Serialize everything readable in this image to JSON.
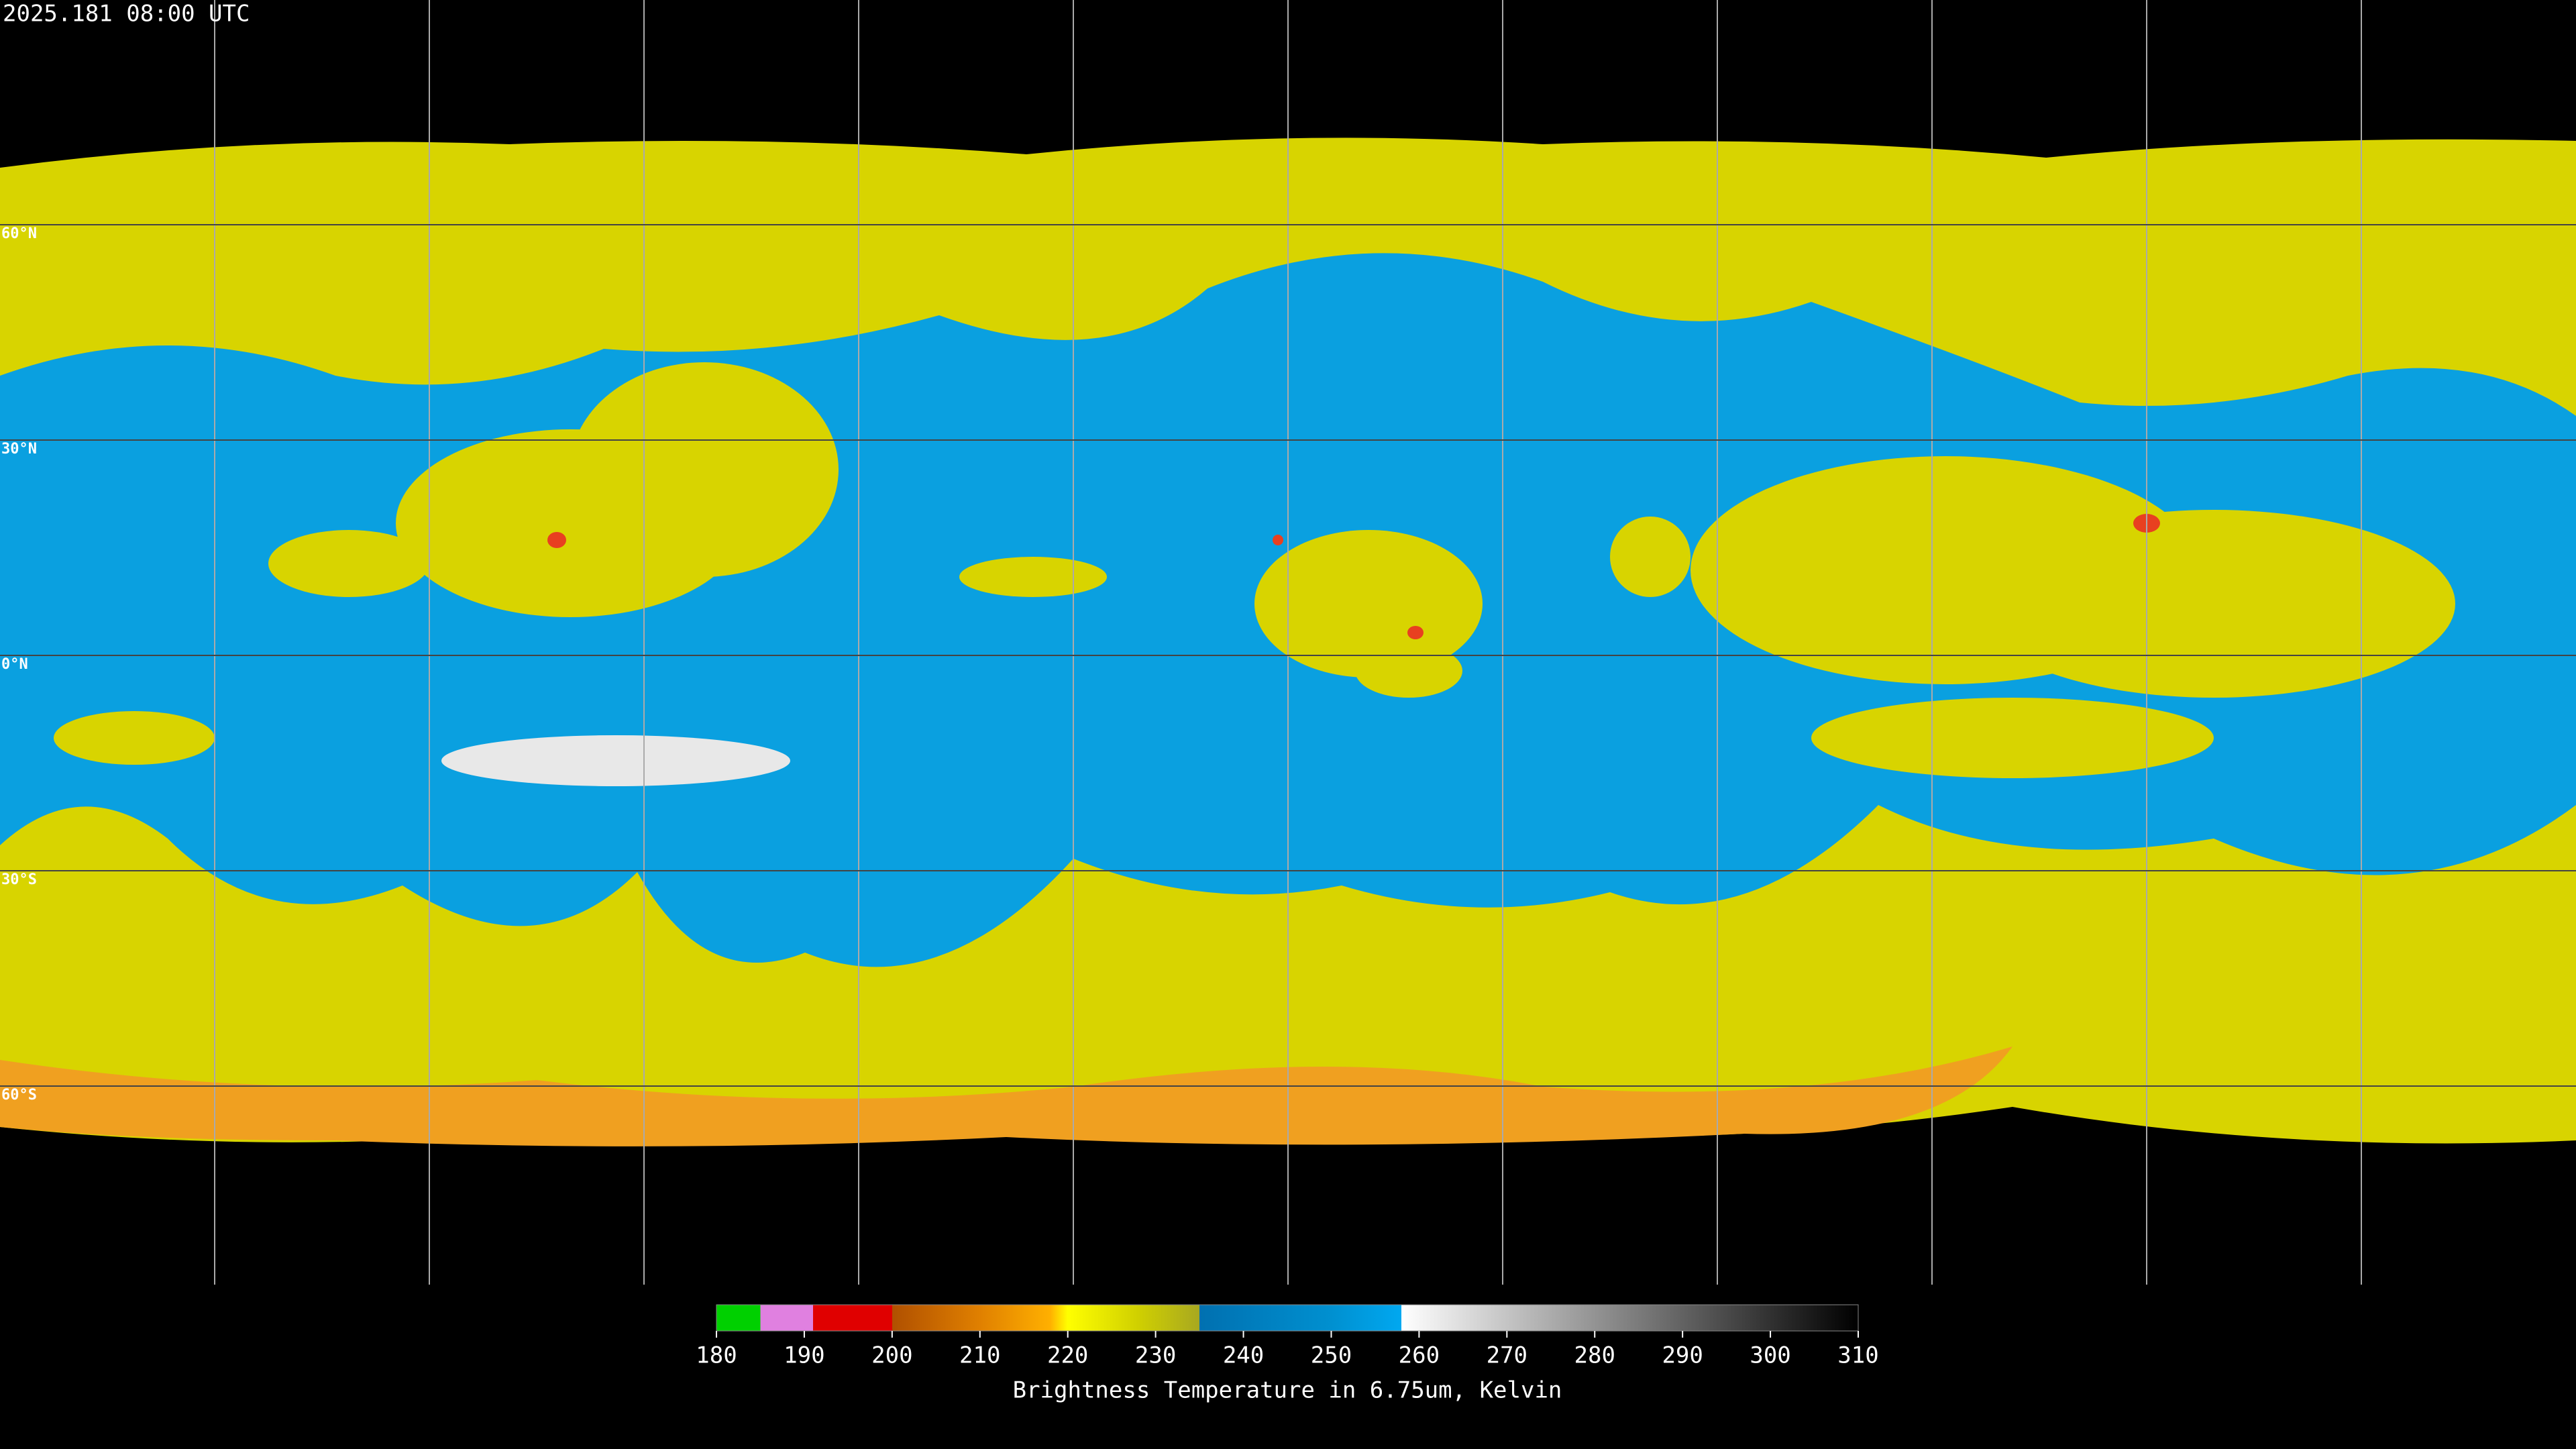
{
  "header": {
    "title": "2025.181 08:00 UTC"
  },
  "map": {
    "latitudes": [
      {
        "value": 60,
        "label": "60°N"
      },
      {
        "value": 30,
        "label": "30°N"
      },
      {
        "value": 0,
        "label": "0°N"
      },
      {
        "value": -30,
        "label": "30°S"
      },
      {
        "value": -60,
        "label": "60°S"
      }
    ]
  },
  "colorbar": {
    "range": [
      180,
      310
    ],
    "ticks": [
      180,
      190,
      200,
      210,
      220,
      230,
      240,
      250,
      260,
      270,
      280,
      290,
      300,
      310
    ],
    "stops": [
      {
        "value": 180,
        "color": "#00d000"
      },
      {
        "value": 185,
        "color": "#00d000"
      },
      {
        "value": 185,
        "color": "#e080e0"
      },
      {
        "value": 191,
        "color": "#e080e0"
      },
      {
        "value": 191,
        "color": "#e00000"
      },
      {
        "value": 200,
        "color": "#e00000"
      },
      {
        "value": 200,
        "color": "#b05000"
      },
      {
        "value": 210,
        "color": "#e08000"
      },
      {
        "value": 218,
        "color": "#ffb000"
      },
      {
        "value": 220,
        "color": "#ffff00"
      },
      {
        "value": 228,
        "color": "#d0d000"
      },
      {
        "value": 235,
        "color": "#a8a820"
      },
      {
        "value": 235,
        "color": "#0070b0"
      },
      {
        "value": 250,
        "color": "#0090d0"
      },
      {
        "value": 258,
        "color": "#00a8f0"
      },
      {
        "value": 258,
        "color": "#ffffff"
      },
      {
        "value": 310,
        "color": "#000000"
      }
    ],
    "label": "Brightness Temperature in 6.75um, Kelvin"
  }
}
